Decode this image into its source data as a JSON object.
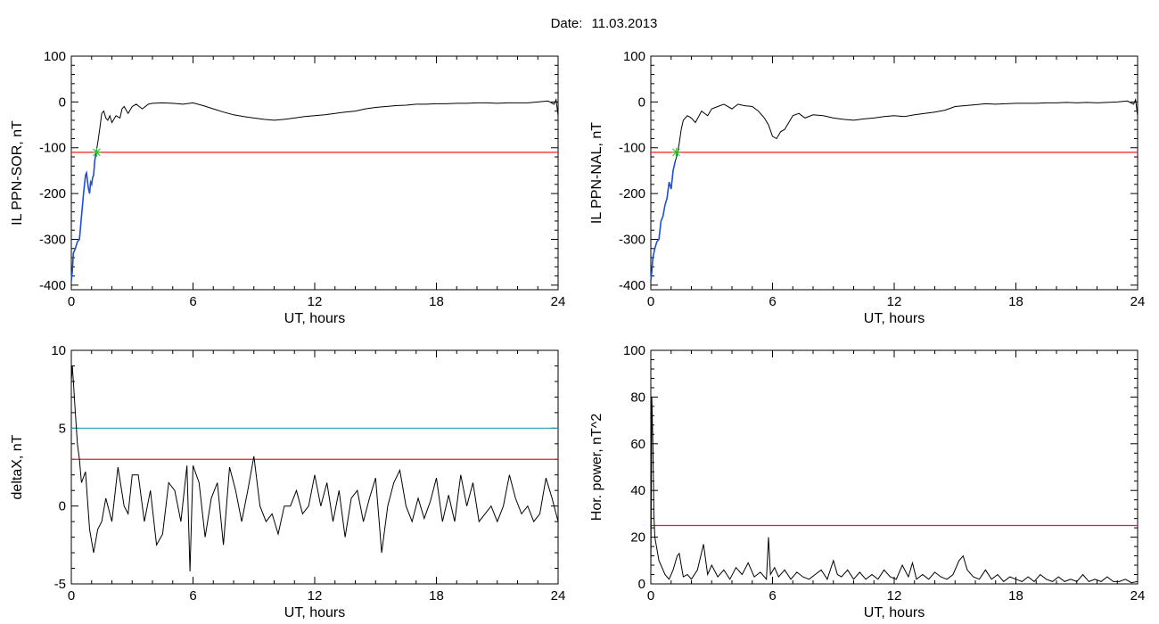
{
  "header": {
    "date_label": "Date:",
    "date_value": "11.03.2013"
  },
  "colors": {
    "trace": "#000000",
    "threshold_red": "#e8201c",
    "threshold_cyan": "#2a9fb8",
    "highlight_blue": "#1f4fd8",
    "marker_green": "#2fbf2f"
  },
  "chart_data": [
    {
      "type": "line",
      "id": "il-sor",
      "ylabel": "IL PPN-SOR, nT",
      "xlabel": "UT, hours",
      "xlim": [
        0,
        24
      ],
      "ylim": [
        -410,
        100
      ],
      "xticks": [
        0,
        6,
        12,
        18,
        24
      ],
      "yticks": [
        -400,
        -300,
        -200,
        -100,
        0,
        100
      ],
      "threshold": {
        "value": -110,
        "color": "#e8201c"
      },
      "crossing_marker": {
        "x": 1.25,
        "y": -110
      },
      "highlight_range": [
        0,
        1.25
      ],
      "series": [
        {
          "x": [
            0,
            0.05,
            0.1,
            0.2,
            0.3,
            0.4,
            0.5,
            0.6,
            0.7,
            0.75,
            0.8,
            0.85,
            0.9,
            0.95,
            1.0,
            1.05,
            1.1,
            1.15,
            1.2,
            1.3,
            1.4,
            1.5,
            1.6,
            1.7,
            1.8,
            1.9,
            2.0,
            2.2,
            2.4,
            2.5,
            2.6,
            2.8,
            3.0,
            3.2,
            3.5,
            3.8,
            4.0,
            4.5,
            5.0,
            5.5,
            6.0,
            6.5,
            7.0,
            7.5,
            8.0,
            8.5,
            9.0,
            9.5,
            10.0,
            10.5,
            11.0,
            11.5,
            12.0,
            12.5,
            13.0,
            13.5,
            14.0,
            14.5,
            15.0,
            15.5,
            16.0,
            16.5,
            17.0,
            17.5,
            18.0,
            18.5,
            19.0,
            19.5,
            20.0,
            20.5,
            21.0,
            21.5,
            22.0,
            22.5,
            23.0,
            23.5,
            23.8,
            23.9,
            24.0
          ],
          "y": [
            -390,
            -370,
            -330,
            -320,
            -305,
            -300,
            -250,
            -200,
            -160,
            -155,
            -175,
            -190,
            -200,
            -175,
            -180,
            -165,
            -160,
            -130,
            -115,
            -90,
            -60,
            -25,
            -20,
            -35,
            -40,
            -30,
            -45,
            -30,
            -35,
            -15,
            -10,
            -25,
            -10,
            -5,
            -15,
            -5,
            -3,
            -2,
            -3,
            -5,
            -2,
            -8,
            -15,
            -22,
            -28,
            -32,
            -35,
            -38,
            -40,
            -38,
            -35,
            -32,
            -30,
            -28,
            -25,
            -22,
            -20,
            -15,
            -12,
            -10,
            -8,
            -7,
            -5,
            -5,
            -4,
            -4,
            -3,
            -3,
            -2,
            -2,
            -3,
            -2,
            -2,
            -2,
            0,
            2,
            -5,
            5,
            -30
          ]
        }
      ]
    },
    {
      "type": "line",
      "id": "il-nal",
      "ylabel": "IL PPN-NAL, nT",
      "xlabel": "UT, hours",
      "xlim": [
        0,
        24
      ],
      "ylim": [
        -410,
        100
      ],
      "xticks": [
        0,
        6,
        12,
        18,
        24
      ],
      "yticks": [
        -400,
        -300,
        -200,
        -100,
        0,
        100
      ],
      "threshold": {
        "value": -110,
        "color": "#e8201c"
      },
      "crossing_marker": {
        "x": 1.25,
        "y": -110
      },
      "highlight_range": [
        0,
        1.25
      ],
      "series": [
        {
          "x": [
            0,
            0.05,
            0.1,
            0.2,
            0.3,
            0.4,
            0.5,
            0.6,
            0.7,
            0.8,
            0.9,
            1.0,
            1.1,
            1.2,
            1.3,
            1.4,
            1.5,
            1.6,
            1.8,
            2.0,
            2.2,
            2.5,
            2.8,
            3.0,
            3.3,
            3.6,
            4.0,
            4.3,
            4.6,
            5.0,
            5.3,
            5.6,
            5.8,
            6.0,
            6.2,
            6.4,
            6.6,
            6.8,
            7.0,
            7.3,
            7.6,
            8.0,
            8.5,
            9.0,
            9.5,
            10.0,
            10.5,
            11.0,
            11.5,
            12.0,
            12.5,
            13.0,
            13.5,
            14.0,
            14.5,
            15.0,
            15.5,
            16.0,
            16.5,
            17.0,
            17.5,
            18.0,
            18.5,
            19.0,
            19.5,
            20.0,
            20.5,
            21.0,
            21.5,
            22.0,
            22.5,
            23.0,
            23.5,
            23.8,
            23.9,
            24.0
          ],
          "y": [
            -390,
            -370,
            -340,
            -320,
            -305,
            -300,
            -260,
            -250,
            -225,
            -210,
            -175,
            -190,
            -150,
            -130,
            -115,
            -90,
            -60,
            -40,
            -30,
            -35,
            -45,
            -20,
            -30,
            -15,
            -10,
            -5,
            -15,
            -5,
            -8,
            -10,
            -20,
            -35,
            -50,
            -75,
            -80,
            -65,
            -60,
            -45,
            -30,
            -25,
            -35,
            -28,
            -30,
            -35,
            -38,
            -40,
            -37,
            -35,
            -32,
            -30,
            -32,
            -28,
            -25,
            -22,
            -18,
            -10,
            -8,
            -6,
            -4,
            -5,
            -4,
            -3,
            -3,
            -3,
            -2,
            -2,
            -1,
            -2,
            -1,
            -2,
            -1,
            0,
            2,
            -5,
            5,
            -30
          ]
        }
      ]
    },
    {
      "type": "line",
      "id": "deltax",
      "ylabel": "deltaX, nT",
      "xlabel": "UT, hours",
      "xlim": [
        0,
        24
      ],
      "ylim": [
        -5,
        10
      ],
      "xticks": [
        0,
        6,
        12,
        18,
        24
      ],
      "yticks": [
        -5,
        0,
        5,
        10
      ],
      "thresholds": [
        {
          "value": 5,
          "color": "#2a9fb8"
        },
        {
          "value": 3,
          "color": "#e8201c"
        }
      ],
      "series": [
        {
          "x": [
            0,
            0.05,
            0.1,
            0.2,
            0.3,
            0.4,
            0.5,
            0.7,
            0.9,
            1.1,
            1.3,
            1.5,
            1.7,
            2.0,
            2.3,
            2.6,
            2.8,
            3.0,
            3.3,
            3.6,
            3.9,
            4.2,
            4.5,
            4.8,
            5.1,
            5.4,
            5.7,
            5.85,
            6.0,
            6.3,
            6.6,
            6.9,
            7.2,
            7.5,
            7.8,
            8.1,
            8.4,
            8.7,
            9.0,
            9.3,
            9.6,
            9.9,
            10.2,
            10.5,
            10.8,
            11.1,
            11.4,
            11.7,
            12.0,
            12.3,
            12.6,
            12.9,
            13.2,
            13.5,
            13.8,
            14.1,
            14.4,
            14.7,
            15.0,
            15.3,
            15.6,
            15.9,
            16.2,
            16.5,
            16.8,
            17.1,
            17.4,
            17.7,
            18.0,
            18.3,
            18.6,
            18.9,
            19.2,
            19.5,
            19.8,
            20.1,
            20.4,
            20.7,
            21.0,
            21.3,
            21.6,
            21.9,
            22.2,
            22.5,
            22.8,
            23.1,
            23.4,
            23.7,
            24.0
          ],
          "y": [
            8,
            9,
            8,
            6,
            4,
            3,
            1.5,
            2.2,
            -1.5,
            -3,
            -1.5,
            -1,
            0.5,
            -1,
            2.5,
            0,
            -0.5,
            2,
            2,
            -1,
            1,
            -2.5,
            -1.8,
            1.5,
            1,
            -1,
            2.6,
            -4.2,
            2.6,
            1.5,
            -2,
            0.5,
            1.5,
            -2.5,
            2.5,
            1,
            -1,
            1,
            3.2,
            0,
            -1,
            -0.5,
            -1.8,
            0,
            0,
            1,
            -0.5,
            0,
            2,
            0,
            1.5,
            -1,
            1,
            -2,
            0.5,
            1,
            -1,
            0.5,
            1.8,
            -3,
            0,
            1.5,
            2.3,
            0,
            -1,
            0.5,
            -0.8,
            0.3,
            1.8,
            -1,
            0.7,
            -1,
            2,
            0,
            1.5,
            -1,
            -0.5,
            0,
            -1,
            0,
            2,
            0.5,
            -0.5,
            0,
            -1,
            -0.5,
            1.8,
            0.5,
            -1
          ]
        }
      ]
    },
    {
      "type": "line",
      "id": "hor-power",
      "ylabel": "Hor. power, nT^2",
      "xlabel": "UT, hours",
      "xlim": [
        0,
        24
      ],
      "ylim": [
        0,
        100
      ],
      "xticks": [
        0,
        6,
        12,
        18,
        24
      ],
      "yticks": [
        0,
        20,
        40,
        60,
        80,
        100
      ],
      "threshold": {
        "value": 25,
        "color": "#e8201c"
      },
      "series": [
        {
          "x": [
            0,
            0.05,
            0.1,
            0.15,
            0.2,
            0.3,
            0.4,
            0.5,
            0.7,
            0.9,
            1.1,
            1.3,
            1.4,
            1.5,
            1.6,
            1.8,
            2.0,
            2.3,
            2.6,
            2.8,
            3.0,
            3.3,
            3.6,
            3.9,
            4.2,
            4.5,
            4.8,
            5.1,
            5.4,
            5.7,
            5.8,
            5.9,
            6.1,
            6.3,
            6.6,
            6.9,
            7.2,
            7.5,
            7.8,
            8.1,
            8.4,
            8.7,
            9.0,
            9.2,
            9.4,
            9.7,
            10.0,
            10.3,
            10.6,
            10.9,
            11.2,
            11.5,
            11.8,
            12.1,
            12.4,
            12.7,
            12.9,
            13.1,
            13.4,
            13.7,
            14.0,
            14.3,
            14.6,
            14.9,
            15.2,
            15.4,
            15.6,
            15.9,
            16.2,
            16.5,
            16.8,
            17.1,
            17.4,
            17.7,
            18.0,
            18.3,
            18.6,
            18.9,
            19.2,
            19.5,
            19.8,
            20.1,
            20.4,
            20.7,
            21.0,
            21.3,
            21.6,
            21.9,
            22.2,
            22.5,
            22.8,
            23.1,
            23.4,
            23.7,
            24.0
          ],
          "y": [
            5,
            80,
            60,
            30,
            20,
            15,
            10,
            8,
            4,
            2,
            6,
            12,
            13,
            8,
            3,
            4,
            2,
            6,
            17,
            4,
            8,
            3,
            6,
            2,
            7,
            4,
            9,
            3,
            5,
            2,
            20,
            4,
            7,
            3,
            6,
            2,
            5,
            3,
            2,
            4,
            6,
            2,
            10,
            4,
            3,
            6,
            2,
            5,
            2,
            4,
            2,
            6,
            3,
            2,
            8,
            3,
            9,
            2,
            4,
            2,
            5,
            3,
            2,
            4,
            10,
            12,
            6,
            3,
            2,
            6,
            2,
            4,
            1,
            3,
            2,
            1,
            3,
            1,
            4,
            2,
            1,
            3,
            1,
            2,
            1,
            4,
            1,
            2,
            1,
            3,
            1,
            1,
            2,
            0.5,
            1
          ]
        }
      ]
    }
  ]
}
